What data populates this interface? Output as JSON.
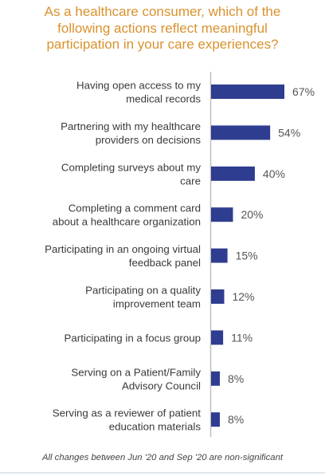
{
  "chart_data": {
    "type": "bar",
    "orientation": "horizontal",
    "title_lines": [
      "As a healthcare consumer, which of the",
      "following actions reflect meaningful",
      "participation in your care experiences?"
    ],
    "categories": [
      [
        "Having open access to my",
        "medical records"
      ],
      [
        "Partnering with my healthcare",
        "providers on decisions"
      ],
      [
        "Completing surveys about my",
        "care"
      ],
      [
        "Completing a comment card",
        "about a healthcare organization"
      ],
      [
        "Participating in an ongoing virtual",
        "feedback panel"
      ],
      [
        "Participating on a quality",
        "improvement team"
      ],
      [
        "Participating in a focus group"
      ],
      [
        "Serving on a Patient/Family",
        "Advisory Council"
      ],
      [
        "Serving as a reviewer of patient",
        "education materials"
      ]
    ],
    "values": [
      67,
      54,
      40,
      20,
      15,
      12,
      11,
      8,
      8
    ],
    "value_labels": [
      "67%",
      "54%",
      "40%",
      "20%",
      "15%",
      "12%",
      "11%",
      "8%",
      "8%"
    ],
    "bar_color": "#2e3d8f",
    "title_color": "#d9922e",
    "grid": false,
    "legend": "none"
  },
  "footnote": "All changes between Jun '20 and Sep '20 are non-significant"
}
